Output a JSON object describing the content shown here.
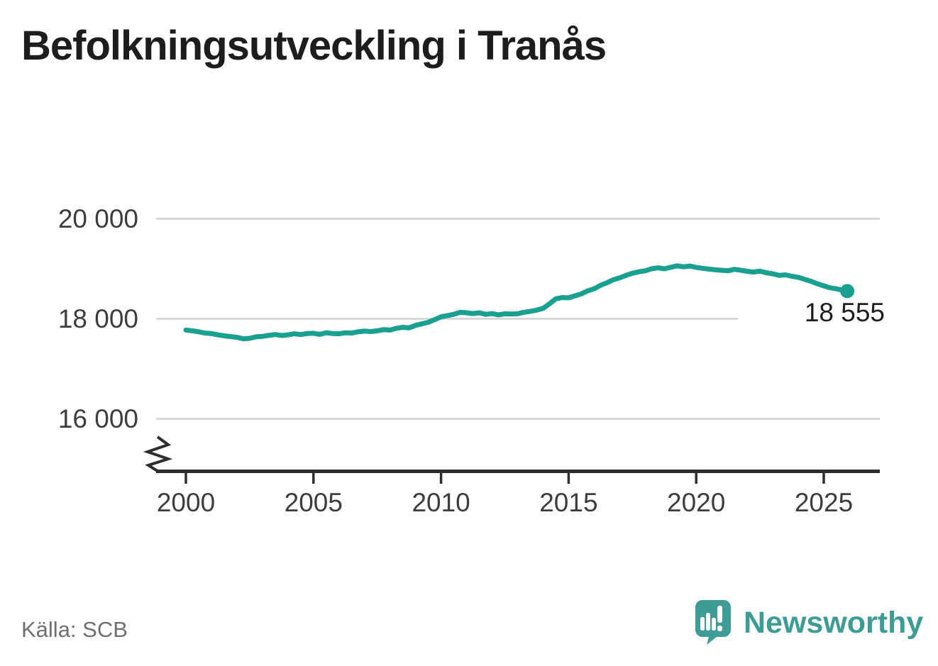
{
  "header": {
    "title": "Befolkningsutveckling i Tranås"
  },
  "footer": {
    "source": "Källa: SCB",
    "brand": "Newsworthy"
  },
  "colors": {
    "line": "#1aa091",
    "grid": "#d9d9d9",
    "axis": "#2e2e2e",
    "title": "#1d1d1b",
    "tick_label": "#3d3d3d",
    "end_label": "#1e1e1e",
    "source": "#6f6f6f",
    "brand": "#3e9c96"
  },
  "chart_data": {
    "type": "line",
    "title": "Befolkningsutveckling i Tranås",
    "xlabel": "",
    "ylabel": "",
    "grid": "horizontal-only",
    "axis_break_bottom_left": true,
    "legend": "none",
    "xlim": [
      1998.8,
      2027.2
    ],
    "ylim_gridlines": [
      16000,
      20000
    ],
    "xticks": [
      {
        "value": 2000,
        "label": "2000"
      },
      {
        "value": 2005,
        "label": "2005"
      },
      {
        "value": 2010,
        "label": "2010"
      },
      {
        "value": 2015,
        "label": "2015"
      },
      {
        "value": 2020,
        "label": "2020"
      },
      {
        "value": 2025,
        "label": "2025"
      }
    ],
    "yticks": [
      {
        "value": 20000,
        "label": "20 000"
      },
      {
        "value": 18000,
        "label": "18 000"
      },
      {
        "value": 16000,
        "label": "16 000"
      }
    ],
    "end_label": "18 555",
    "last_value": 18555,
    "series": [
      {
        "name": "Befolkning i Tranås",
        "x": [
          2000.0,
          2000.25,
          2000.5,
          2000.75,
          2001.0,
          2001.25,
          2001.5,
          2001.75,
          2002.0,
          2002.25,
          2002.5,
          2002.75,
          2003.0,
          2003.25,
          2003.5,
          2003.75,
          2004.0,
          2004.25,
          2004.5,
          2004.75,
          2005.0,
          2005.25,
          2005.5,
          2005.75,
          2006.0,
          2006.25,
          2006.5,
          2006.75,
          2007.0,
          2007.25,
          2007.5,
          2007.75,
          2008.0,
          2008.25,
          2008.5,
          2008.75,
          2009.0,
          2009.25,
          2009.5,
          2009.75,
          2010.0,
          2010.25,
          2010.5,
          2010.75,
          2011.0,
          2011.25,
          2011.5,
          2011.75,
          2012.0,
          2012.25,
          2012.5,
          2012.75,
          2013.0,
          2013.25,
          2013.5,
          2013.75,
          2014.0,
          2014.25,
          2014.5,
          2014.75,
          2015.0,
          2015.25,
          2015.5,
          2015.75,
          2016.0,
          2016.25,
          2016.5,
          2016.75,
          2017.0,
          2017.25,
          2017.5,
          2017.75,
          2018.0,
          2018.25,
          2018.5,
          2018.75,
          2019.0,
          2019.25,
          2019.5,
          2019.75,
          2020.0,
          2020.25,
          2020.5,
          2020.75,
          2021.0,
          2021.25,
          2021.5,
          2021.75,
          2022.0,
          2022.25,
          2022.5,
          2022.75,
          2023.0,
          2023.25,
          2023.5,
          2023.75,
          2024.0,
          2024.25,
          2024.5,
          2024.75,
          2025.0,
          2025.25,
          2025.5,
          2025.75,
          2025.92
        ],
        "y": [
          17775,
          17760,
          17740,
          17715,
          17705,
          17680,
          17660,
          17645,
          17630,
          17600,
          17610,
          17640,
          17650,
          17670,
          17685,
          17665,
          17680,
          17700,
          17685,
          17705,
          17710,
          17690,
          17720,
          17705,
          17700,
          17720,
          17715,
          17740,
          17755,
          17745,
          17760,
          17785,
          17775,
          17810,
          17830,
          17820,
          17870,
          17900,
          17930,
          17985,
          18040,
          18065,
          18090,
          18130,
          18120,
          18105,
          18120,
          18090,
          18105,
          18080,
          18100,
          18095,
          18100,
          18130,
          18150,
          18175,
          18210,
          18300,
          18400,
          18425,
          18420,
          18460,
          18500,
          18560,
          18600,
          18670,
          18720,
          18780,
          18820,
          18870,
          18910,
          18940,
          18960,
          19000,
          19020,
          19000,
          19030,
          19060,
          19040,
          19055,
          19030,
          19010,
          18995,
          18980,
          18970,
          18960,
          18990,
          18970,
          18950,
          18935,
          18955,
          18920,
          18900,
          18870,
          18880,
          18850,
          18830,
          18790,
          18750,
          18700,
          18660,
          18620,
          18600,
          18570,
          18555
        ]
      }
    ]
  }
}
